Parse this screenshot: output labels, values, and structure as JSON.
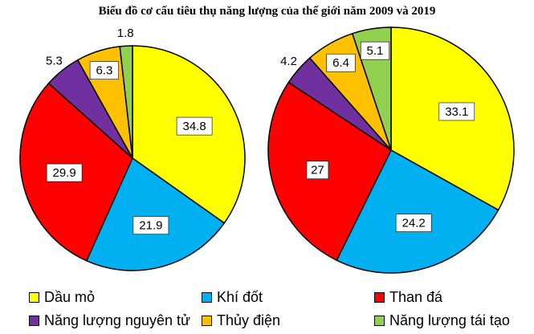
{
  "colors": {
    "Dầu mỏ": "#ffff00",
    "Khí đốt": "#00b0f0",
    "Than đá": "#ff0000",
    "Năng lượng nguyên tử": "#7030a0",
    "Thủy điện": "#ffc000",
    "Năng lượng tái tạo": "#92d050"
  },
  "chart_data": {
    "type": "pie",
    "title": "Biểu đồ cơ cấu tiêu thụ năng lượng của thế giới năm 2009 và 2019",
    "categories": [
      "Dầu mỏ",
      "Khí đốt",
      "Than đá",
      "Năng lượng nguyên tử",
      "Thủy điện",
      "Năng lượng tái tạo"
    ],
    "series": [
      {
        "values": [
          34.8,
          21.9,
          29.9,
          5.3,
          6.3,
          1.8
        ]
      },
      {
        "values": [
          33.1,
          24.2,
          27,
          4.2,
          6.4,
          5.1
        ]
      }
    ],
    "legend_position": "bottom"
  }
}
